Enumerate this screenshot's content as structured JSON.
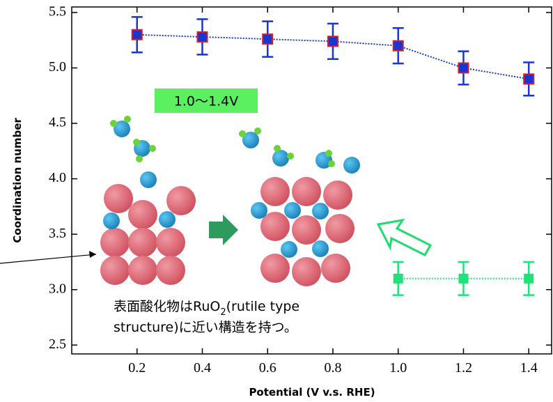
{
  "chart_data": {
    "type": "line",
    "y_label": "Coordination number",
    "x_label": "Potential (V v.s. RHE)",
    "xlim": [
      0,
      1.47
    ],
    "ylim": [
      2.42,
      5.55
    ],
    "xticks": [
      0.2,
      0.4,
      0.6,
      0.8,
      {
        "value": 1.0,
        "label": "1.0"
      },
      1.2,
      1.4
    ],
    "yticks": [
      2.5,
      {
        "value": 3.0,
        "label": "3.0"
      },
      3.5,
      {
        "value": 4.0,
        "label": "4.0"
      },
      4.5,
      {
        "value": 5.0,
        "label": "5.0"
      },
      5.5
    ],
    "series": [
      {
        "color": "#1a35d0",
        "x": [
          0.2,
          0.4,
          0.6,
          0.8,
          1.0,
          1.2,
          1.4
        ],
        "values": [
          5.3,
          5.28,
          5.26,
          5.24,
          5.2,
          5.0,
          4.9
        ],
        "errors": [
          0.16,
          0.16,
          0.16,
          0.16,
          0.16,
          0.15,
          0.15
        ]
      },
      {
        "color": "#22e07a",
        "x": [
          1.0,
          1.2,
          1.4
        ],
        "values": [
          3.1,
          3.1,
          3.1
        ],
        "errors": [
          0.15,
          0.15,
          0.15
        ]
      }
    ],
    "annotations": {
      "range": "1.0〜1.4V",
      "note_1": "表面酸化物はRuO",
      "note_sub": "2",
      "note_2": "(rutile type",
      "note_3": "structure)に近い構造を持つ。"
    }
  }
}
